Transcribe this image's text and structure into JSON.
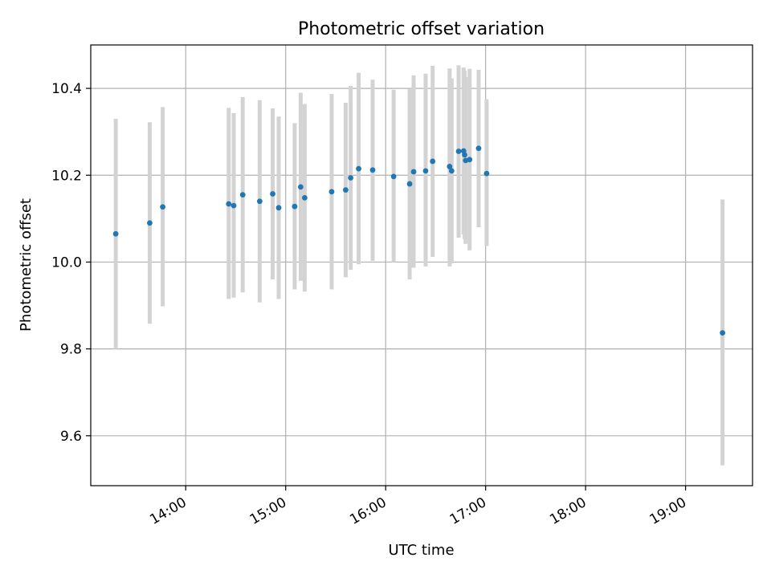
{
  "chart_data": {
    "type": "scatter",
    "title": "Photometric offset variation",
    "xlabel": "UTC time",
    "ylabel": "Photometric offset",
    "x_unit": "UTC time (hours of day)",
    "xlim": [
      13.05,
      19.67
    ],
    "ylim": [
      9.485,
      10.5
    ],
    "x_ticks": [
      {
        "value": 14,
        "label": "14:00"
      },
      {
        "value": 15,
        "label": "15:00"
      },
      {
        "value": 16,
        "label": "16:00"
      },
      {
        "value": 17,
        "label": "17:00"
      },
      {
        "value": 18,
        "label": "18:00"
      },
      {
        "value": 19,
        "label": "19:00"
      }
    ],
    "y_ticks": [
      {
        "value": 9.6,
        "label": "9.6"
      },
      {
        "value": 9.8,
        "label": "9.8"
      },
      {
        "value": 10.0,
        "label": "10.0"
      },
      {
        "value": 10.2,
        "label": "10.2"
      },
      {
        "value": 10.4,
        "label": "10.4"
      }
    ],
    "grid": true,
    "point_color": "#1f77b4",
    "errorbar_color": "#d3d3d3",
    "points": [
      {
        "x": 13.3,
        "y": 10.065,
        "ylo": 9.8,
        "yhi": 10.33
      },
      {
        "x": 13.64,
        "y": 10.09,
        "ylo": 9.858,
        "yhi": 10.322
      },
      {
        "x": 13.77,
        "y": 10.127,
        "ylo": 9.898,
        "yhi": 10.357
      },
      {
        "x": 14.43,
        "y": 10.134,
        "ylo": 9.915,
        "yhi": 10.355
      },
      {
        "x": 14.48,
        "y": 10.13,
        "ylo": 9.918,
        "yhi": 10.343
      },
      {
        "x": 14.57,
        "y": 10.155,
        "ylo": 9.93,
        "yhi": 10.38
      },
      {
        "x": 14.74,
        "y": 10.14,
        "ylo": 9.907,
        "yhi": 10.373
      },
      {
        "x": 14.87,
        "y": 10.157,
        "ylo": 9.96,
        "yhi": 10.354
      },
      {
        "x": 14.93,
        "y": 10.125,
        "ylo": 9.915,
        "yhi": 10.335
      },
      {
        "x": 15.09,
        "y": 10.128,
        "ylo": 9.937,
        "yhi": 10.32
      },
      {
        "x": 15.15,
        "y": 10.173,
        "ylo": 9.957,
        "yhi": 10.39
      },
      {
        "x": 15.19,
        "y": 10.148,
        "ylo": 9.932,
        "yhi": 10.364
      },
      {
        "x": 15.46,
        "y": 10.162,
        "ylo": 9.937,
        "yhi": 10.387
      },
      {
        "x": 15.6,
        "y": 10.166,
        "ylo": 9.965,
        "yhi": 10.367
      },
      {
        "x": 15.65,
        "y": 10.194,
        "ylo": 9.982,
        "yhi": 10.406
      },
      {
        "x": 15.73,
        "y": 10.215,
        "ylo": 9.995,
        "yhi": 10.436
      },
      {
        "x": 15.87,
        "y": 10.212,
        "ylo": 10.003,
        "yhi": 10.42
      },
      {
        "x": 16.08,
        "y": 10.197,
        "ylo": 10.0,
        "yhi": 10.397
      },
      {
        "x": 16.24,
        "y": 10.18,
        "ylo": 9.96,
        "yhi": 10.398
      },
      {
        "x": 16.28,
        "y": 10.208,
        "ylo": 9.987,
        "yhi": 10.43
      },
      {
        "x": 16.4,
        "y": 10.21,
        "ylo": 9.99,
        "yhi": 10.434
      },
      {
        "x": 16.47,
        "y": 10.232,
        "ylo": 10.012,
        "yhi": 10.452
      },
      {
        "x": 16.64,
        "y": 10.22,
        "ylo": 9.99,
        "yhi": 10.446
      },
      {
        "x": 16.66,
        "y": 10.21,
        "ylo": 9.997,
        "yhi": 10.423
      },
      {
        "x": 16.73,
        "y": 10.255,
        "ylo": 10.056,
        "yhi": 10.453
      },
      {
        "x": 16.78,
        "y": 10.256,
        "ylo": 10.064,
        "yhi": 10.448
      },
      {
        "x": 16.79,
        "y": 10.247,
        "ylo": 10.053,
        "yhi": 10.441
      },
      {
        "x": 16.8,
        "y": 10.234,
        "ylo": 10.042,
        "yhi": 10.426
      },
      {
        "x": 16.84,
        "y": 10.236,
        "ylo": 10.027,
        "yhi": 10.445
      },
      {
        "x": 16.93,
        "y": 10.262,
        "ylo": 10.08,
        "yhi": 10.443
      },
      {
        "x": 17.01,
        "y": 10.204,
        "ylo": 10.037,
        "yhi": 10.375
      },
      {
        "x": 19.37,
        "y": 9.837,
        "ylo": 9.532,
        "yhi": 10.144
      }
    ]
  }
}
